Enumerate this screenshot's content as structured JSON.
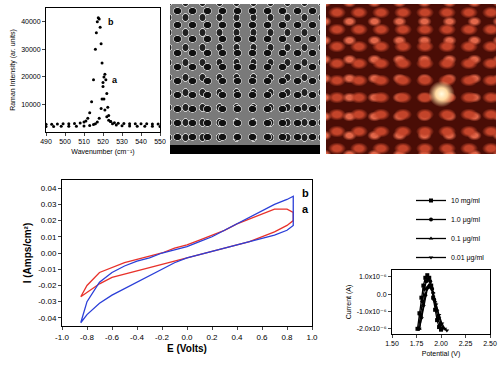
{
  "chart_data": [
    {
      "type": "scatter",
      "x_label": "Wavenumber (cm⁻¹)",
      "y_label": "Raman Intensity (ar. units)",
      "xlim": [
        490,
        550
      ],
      "xticks": [
        490,
        500,
        510,
        520,
        530,
        540,
        550
      ],
      "ylim": [
        0,
        45000
      ],
      "yticks": [
        10000,
        20000,
        30000,
        40000
      ],
      "grid": false,
      "marker": "circle",
      "series": [
        {
          "name": "a",
          "color": "#000000",
          "x": [
            490,
            494,
            498,
            502,
            506,
            510,
            513,
            515,
            516,
            517,
            518,
            519,
            519.5,
            520,
            520.5,
            521,
            521.5,
            522,
            522.5,
            523,
            524,
            525,
            527,
            530,
            534,
            538,
            542,
            546,
            550
          ],
          "values": [
            2000,
            2000,
            2050,
            2100,
            2100,
            2200,
            2400,
            2700,
            3000,
            3600,
            5000,
            8500,
            12000,
            16500,
            20000,
            21000,
            19000,
            14000,
            9000,
            6000,
            3800,
            3000,
            2500,
            2300,
            2200,
            2100,
            2100,
            2050,
            2000
          ]
        },
        {
          "name": "b",
          "color": "#000000",
          "x": [
            490,
            493,
            496,
            499,
            502,
            505,
            508,
            510,
            511,
            512,
            513,
            514,
            515,
            516,
            516.5,
            517,
            517.5,
            518,
            518.5,
            519,
            519.5,
            520,
            520.5,
            521,
            522,
            523,
            524,
            526,
            528,
            531,
            534,
            537,
            540,
            543,
            546,
            549
          ],
          "values": [
            2800,
            2850,
            2900,
            2950,
            3000,
            3100,
            3300,
            3600,
            4000,
            5000,
            7000,
            11000,
            19000,
            30000,
            36000,
            40000,
            41500,
            41000,
            38000,
            32000,
            25000,
            18000,
            12000,
            8000,
            5500,
            4300,
            3800,
            3400,
            3200,
            3100,
            3000,
            3000,
            2950,
            2950,
            2900,
            2900
          ]
        }
      ],
      "annotations": [
        {
          "text": "a",
          "x": 523.5,
          "y": 19000
        },
        {
          "text": "b",
          "x": 521.5,
          "y": 40000
        }
      ]
    },
    {
      "type": "line",
      "x_label": "E (Volts)",
      "y_label": "I (Amps/cm²)",
      "xlim": [
        -1.0,
        1.0
      ],
      "xticks": [
        {
          "value": -1.0,
          "label": "-1.0"
        },
        {
          "value": -0.8,
          "label": "-0.8"
        },
        {
          "value": -0.6,
          "label": "-0.6"
        },
        {
          "value": -0.4,
          "label": "-0.4"
        },
        {
          "value": -0.2,
          "label": "-0.2"
        },
        {
          "value": 0,
          "label": "0.0"
        },
        {
          "value": 0.2,
          "label": "0.2"
        },
        {
          "value": 0.4,
          "label": "0.4"
        },
        {
          "value": 0.6,
          "label": "0.6"
        },
        {
          "value": 0.8,
          "label": "0.8"
        },
        {
          "value": 1.0,
          "label": "1.0"
        }
      ],
      "ylim": [
        -0.045,
        0.045
      ],
      "yticks": [
        -0.04,
        -0.03,
        -0.02,
        -0.01,
        {
          "value": 0,
          "label": "0.00"
        },
        0.01,
        0.02,
        0.03,
        0.04
      ],
      "grid": false,
      "line_style": "solid",
      "series": [
        {
          "name": "a",
          "color": "#e8322b",
          "x": [
            -0.85,
            -0.8,
            -0.7,
            -0.6,
            -0.5,
            -0.4,
            -0.3,
            -0.2,
            -0.1,
            0,
            0.1,
            0.2,
            0.3,
            0.4,
            0.5,
            0.6,
            0.7,
            0.8,
            0.85,
            0.85,
            0.8,
            0.7,
            0.6,
            0.5,
            0.4,
            0.3,
            0.2,
            0.1,
            0,
            -0.1,
            -0.2,
            -0.3,
            -0.4,
            -0.5,
            -0.6,
            -0.7,
            -0.8,
            -0.85
          ],
          "values": [
            -0.027,
            -0.02,
            -0.012,
            -0.009,
            -0.006,
            -0.004,
            -0.002,
            0.0,
            0.003,
            0.005,
            0.008,
            0.011,
            0.014,
            0.018,
            0.021,
            0.024,
            0.027,
            0.027,
            0.025,
            0.02,
            0.017,
            0.013,
            0.01,
            0.007,
            0.005,
            0.003,
            0.001,
            -0.001,
            -0.003,
            -0.005,
            -0.007,
            -0.009,
            -0.011,
            -0.013,
            -0.015,
            -0.019,
            -0.024,
            -0.027
          ]
        },
        {
          "name": "b",
          "color": "#2b3fd8",
          "x": [
            -0.85,
            -0.8,
            -0.7,
            -0.6,
            -0.5,
            -0.4,
            -0.3,
            -0.2,
            -0.1,
            0,
            0.1,
            0.2,
            0.3,
            0.4,
            0.5,
            0.6,
            0.7,
            0.8,
            0.85,
            0.85,
            0.8,
            0.7,
            0.6,
            0.5,
            0.4,
            0.3,
            0.2,
            0.1,
            0,
            -0.1,
            -0.2,
            -0.3,
            -0.4,
            -0.5,
            -0.6,
            -0.7,
            -0.8,
            -0.85
          ],
          "values": [
            -0.043,
            -0.03,
            -0.018,
            -0.012,
            -0.008,
            -0.005,
            -0.003,
            0.0,
            0.002,
            0.004,
            0.007,
            0.01,
            0.014,
            0.018,
            0.022,
            0.026,
            0.03,
            0.033,
            0.035,
            0.017,
            0.014,
            0.011,
            0.009,
            0.007,
            0.005,
            0.003,
            0.001,
            -0.001,
            -0.003,
            -0.006,
            -0.01,
            -0.014,
            -0.018,
            -0.022,
            -0.026,
            -0.031,
            -0.038,
            -0.043
          ]
        }
      ],
      "annotations": [
        {
          "text": "b",
          "x": 0.9,
          "y": 0.037
        },
        {
          "text": "a",
          "x": 0.9,
          "y": 0.027
        }
      ]
    },
    {
      "type": "line",
      "x_label": "Potential (V)",
      "y_label": "Current (A)",
      "xlim": [
        1.5,
        2.5
      ],
      "xticks": [
        {
          "value": 1.5,
          "label": "1.50"
        },
        {
          "value": 1.75,
          "label": "1.75"
        },
        {
          "value": 2.0,
          "label": "2.00"
        },
        {
          "value": 2.25,
          "label": "2.25"
        },
        {
          "value": 2.5,
          "label": "2.50"
        }
      ],
      "ylim": [
        -2.3e-06,
        1.4e-06
      ],
      "yticks": [
        {
          "value": 1e-06,
          "label": "1.0x10⁻⁶"
        },
        {
          "value": 0,
          "label": "0.0"
        },
        {
          "value": -1e-06,
          "label": "-1.0x10⁻⁶"
        },
        {
          "value": -2e-06,
          "label": "-2.0x10⁻⁶"
        }
      ],
      "grid": false,
      "legend": "top right",
      "line_style": "solid",
      "series": [
        {
          "name": "10 mg/ml",
          "color": "#000000",
          "marker": "square",
          "x": [
            1.76,
            1.78,
            1.8,
            1.82,
            1.84,
            1.86,
            1.88,
            1.9,
            1.92,
            1.94,
            1.96,
            1.98,
            2.0
          ],
          "values": [
            -2e-06,
            -1.1e-06,
            -2e-07,
            5e-07,
            9.5e-07,
            1.1e-06,
            9.5e-07,
            5e-07,
            -2e-07,
            -9e-07,
            -1.5e-06,
            -1.9e-06,
            -2.05e-06
          ]
        },
        {
          "name": "1.0 μg/ml",
          "color": "#000000",
          "marker": "circle",
          "x": [
            1.77,
            1.79,
            1.81,
            1.83,
            1.85,
            1.87,
            1.89,
            1.91,
            1.93,
            1.95,
            1.97,
            1.99,
            2.01
          ],
          "values": [
            -2e-06,
            -1.2e-06,
            -4e-07,
            3e-07,
            7.5e-07,
            8.8e-07,
            7.5e-07,
            3e-07,
            -3e-07,
            -9e-07,
            -1.4e-06,
            -1.8e-06,
            -2e-06
          ]
        },
        {
          "name": "0.1 μg/ml",
          "color": "#000000",
          "marker": "triangle-up",
          "x": [
            1.78,
            1.8,
            1.82,
            1.84,
            1.86,
            1.88,
            1.9,
            1.92,
            1.94,
            1.96,
            1.98,
            2.0,
            2.02
          ],
          "values": [
            -2e-06,
            -1.3e-06,
            -6e-07,
            0.0,
            4e-07,
            5.5e-07,
            4.5e-07,
            1e-07,
            -4e-07,
            -9e-07,
            -1.3e-06,
            -1.7e-06,
            -1.95e-06
          ]
        },
        {
          "name": "0.01 μg/ml",
          "color": "#000000",
          "marker": "triangle-down",
          "x": [
            1.78,
            1.8,
            1.82,
            1.84,
            1.86,
            1.88,
            1.9,
            1.92,
            1.95,
            1.98,
            2.01,
            2.04,
            2.06
          ],
          "values": [
            -2e-06,
            -1.4e-06,
            -7e-07,
            -1e-07,
            3e-07,
            4.2e-07,
            3.5e-07,
            5e-08,
            -6e-07,
            -1.2e-06,
            -1.7e-06,
            -2e-06,
            -2.1e-06
          ]
        }
      ]
    }
  ]
}
